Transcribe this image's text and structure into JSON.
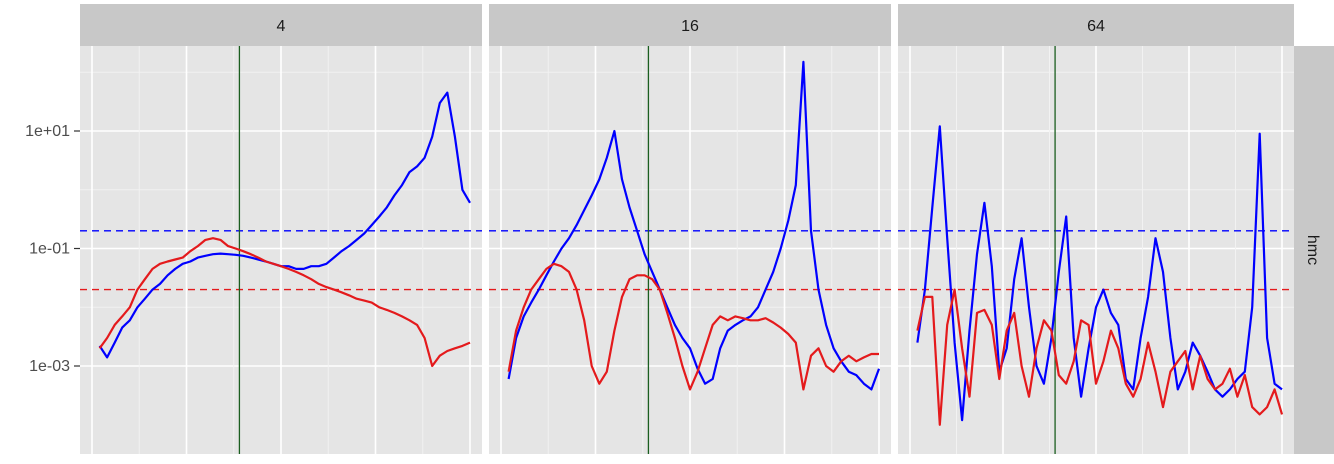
{
  "chart_data": {
    "type": "line",
    "y_scale": "log10",
    "y_ticks": [
      "1e+01",
      "1e-01",
      "1e-03"
    ],
    "y_tick_values": [
      10,
      0.1,
      0.001
    ],
    "ylim": [
      0.0001,
      1000
    ],
    "xlim": [
      0,
      100
    ],
    "row_strip": "hmc",
    "vertical_reference_x": 39,
    "horizontal_references": [
      {
        "color": "#0000FF",
        "y": 0.2
      },
      {
        "color": "#E41A1C",
        "y": 0.02
      }
    ],
    "series_colors": {
      "blue": "#0000FF",
      "red": "#E41A1C"
    },
    "reference_colors": {
      "vline": "#1B5E20"
    },
    "panels": [
      {
        "strip": "4",
        "x": [
          2,
          4,
          6,
          8,
          10,
          12,
          14,
          16,
          18,
          20,
          22,
          24,
          26,
          28,
          30,
          32,
          34,
          36,
          38,
          40,
          42,
          44,
          46,
          48,
          50,
          52,
          54,
          56,
          58,
          60,
          62,
          64,
          66,
          68,
          70,
          72,
          74,
          76,
          78,
          80,
          82,
          84,
          86,
          88,
          90,
          92,
          94,
          96,
          98,
          100
        ],
        "blue": [
          0.0022,
          0.0014,
          0.0025,
          0.0045,
          0.006,
          0.01,
          0.014,
          0.02,
          0.025,
          0.035,
          0.045,
          0.055,
          0.06,
          0.07,
          0.075,
          0.08,
          0.082,
          0.08,
          0.078,
          0.075,
          0.07,
          0.065,
          0.06,
          0.055,
          0.05,
          0.05,
          0.045,
          0.045,
          0.05,
          0.05,
          0.055,
          0.07,
          0.09,
          0.11,
          0.14,
          0.18,
          0.25,
          0.35,
          0.5,
          0.8,
          1.2,
          2.0,
          2.5,
          3.5,
          8,
          30,
          45,
          8,
          1.0,
          0.6
        ],
        "red": [
          0.002,
          0.003,
          0.005,
          0.007,
          0.01,
          0.02,
          0.03,
          0.045,
          0.055,
          0.06,
          0.065,
          0.07,
          0.09,
          0.11,
          0.14,
          0.15,
          0.14,
          0.11,
          0.1,
          0.09,
          0.08,
          0.07,
          0.06,
          0.055,
          0.05,
          0.045,
          0.04,
          0.035,
          0.03,
          0.025,
          0.022,
          0.02,
          0.018,
          0.016,
          0.014,
          0.013,
          0.012,
          0.01,
          0.009,
          0.008,
          0.007,
          0.006,
          0.005,
          0.003,
          0.001,
          0.0015,
          0.0018,
          0.002,
          0.0022,
          0.0025
        ]
      },
      {
        "strip": "16",
        "x": [
          2,
          4,
          6,
          8,
          10,
          12,
          14,
          16,
          18,
          20,
          22,
          24,
          26,
          28,
          30,
          32,
          34,
          36,
          38,
          40,
          42,
          44,
          46,
          48,
          50,
          52,
          54,
          56,
          58,
          60,
          62,
          64,
          66,
          68,
          70,
          72,
          74,
          76,
          78,
          80,
          82,
          84,
          86,
          88,
          90,
          92,
          94,
          96,
          98,
          100
        ],
        "blue": [
          0.0006,
          0.003,
          0.007,
          0.012,
          0.02,
          0.035,
          0.06,
          0.1,
          0.15,
          0.25,
          0.45,
          0.8,
          1.5,
          3.5,
          10,
          1.5,
          0.5,
          0.2,
          0.08,
          0.04,
          0.02,
          0.01,
          0.005,
          0.003,
          0.002,
          0.0009,
          0.0005,
          0.0006,
          0.002,
          0.004,
          0.005,
          0.006,
          0.007,
          0.01,
          0.02,
          0.04,
          0.1,
          0.3,
          1.2,
          150,
          0.2,
          0.02,
          0.005,
          0.002,
          0.0012,
          0.0008,
          0.0007,
          0.0005,
          0.0004,
          0.0009
        ],
        "red": [
          0.0008,
          0.004,
          0.01,
          0.02,
          0.03,
          0.045,
          0.055,
          0.05,
          0.04,
          0.02,
          0.006,
          0.001,
          0.0005,
          0.0008,
          0.004,
          0.015,
          0.03,
          0.035,
          0.035,
          0.03,
          0.02,
          0.008,
          0.003,
          0.001,
          0.0004,
          0.0008,
          0.002,
          0.005,
          0.007,
          0.006,
          0.007,
          0.0065,
          0.006,
          0.006,
          0.0065,
          0.0055,
          0.0045,
          0.0035,
          0.0025,
          0.0004,
          0.0015,
          0.002,
          0.001,
          0.0008,
          0.0012,
          0.0015,
          0.0012,
          0.0014,
          0.0016,
          0.0016
        ]
      },
      {
        "strip": "64",
        "x": [
          2,
          4,
          6,
          8,
          10,
          12,
          14,
          16,
          18,
          20,
          22,
          24,
          26,
          28,
          30,
          32,
          34,
          36,
          38,
          40,
          42,
          44,
          46,
          48,
          50,
          52,
          54,
          56,
          58,
          60,
          62,
          64,
          66,
          68,
          70,
          72,
          74,
          76,
          78,
          80,
          82,
          84,
          86,
          88,
          90,
          92,
          94,
          96,
          98,
          100
        ],
        "blue": [
          0.0025,
          0.02,
          0.5,
          12,
          0.15,
          0.0025,
          0.00012,
          0.004,
          0.08,
          0.6,
          0.05,
          0.0008,
          0.002,
          0.03,
          0.15,
          0.01,
          0.001,
          0.0005,
          0.003,
          0.04,
          0.35,
          0.003,
          0.0003,
          0.002,
          0.01,
          0.02,
          0.008,
          0.005,
          0.0006,
          0.0004,
          0.003,
          0.015,
          0.15,
          0.04,
          0.003,
          0.0004,
          0.0008,
          0.0025,
          0.0015,
          0.0008,
          0.0004,
          0.0003,
          0.0004,
          0.0006,
          0.0008,
          0.01,
          9,
          0.003,
          0.0005,
          0.0004
        ],
        "red": [
          0.004,
          0.015,
          0.015,
          0.0001,
          0.005,
          0.02,
          0.002,
          0.0003,
          0.008,
          0.009,
          0.005,
          0.0006,
          0.004,
          0.008,
          0.001,
          0.0003,
          0.002,
          0.006,
          0.004,
          0.0007,
          0.0005,
          0.0012,
          0.006,
          0.005,
          0.0005,
          0.0012,
          0.004,
          0.002,
          0.0005,
          0.0003,
          0.0006,
          0.0025,
          0.0008,
          0.0002,
          0.0008,
          0.0012,
          0.0018,
          0.0004,
          0.0015,
          0.0006,
          0.0004,
          0.0005,
          0.0009,
          0.0003,
          0.0007,
          0.0002,
          0.00015,
          0.0002,
          0.0004,
          0.00015
        ]
      }
    ]
  }
}
